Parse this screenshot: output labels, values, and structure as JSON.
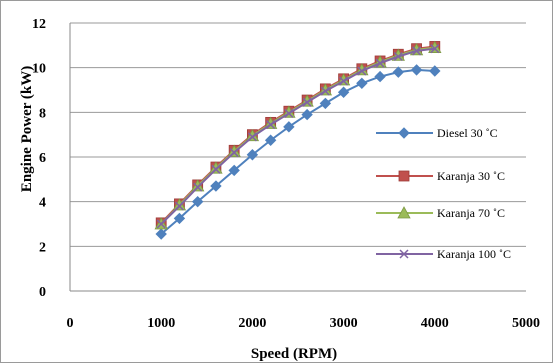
{
  "chart_data": {
    "type": "line",
    "title": "",
    "xlabel": "Speed (RPM)",
    "ylabel": "Engine Power (kW)",
    "xlim": [
      0,
      5000
    ],
    "ylim": [
      0,
      12
    ],
    "xticks": [
      0,
      1000,
      2000,
      3000,
      4000,
      5000
    ],
    "yticks": [
      0,
      2,
      4,
      6,
      8,
      10,
      12
    ],
    "grid": "horizontal",
    "legend_position": "right",
    "x": [
      1000,
      1200,
      1400,
      1600,
      1800,
      2000,
      2200,
      2400,
      2600,
      2800,
      3000,
      3200,
      3400,
      3600,
      3800,
      4000
    ],
    "series": [
      {
        "name": "Diesel 30 ˚C",
        "color": "#4f81bd",
        "marker": "diamond",
        "values": [
          2.55,
          3.25,
          4.0,
          4.7,
          5.4,
          6.1,
          6.75,
          7.35,
          7.9,
          8.4,
          8.9,
          9.3,
          9.6,
          9.8,
          9.9,
          9.85
        ]
      },
      {
        "name": "Karanja 30 ˚C",
        "color": "#c0504d",
        "marker": "square",
        "values": [
          3.05,
          3.9,
          4.75,
          5.55,
          6.3,
          7.0,
          7.55,
          8.05,
          8.55,
          9.05,
          9.5,
          9.95,
          10.3,
          10.6,
          10.85,
          10.95
        ]
      },
      {
        "name": "Karanja 70 ˚C",
        "color": "#9bbb59",
        "marker": "triangle",
        "values": [
          3.0,
          3.85,
          4.7,
          5.5,
          6.25,
          6.95,
          7.5,
          8.0,
          8.5,
          9.0,
          9.45,
          9.9,
          10.25,
          10.55,
          10.8,
          10.9
        ]
      },
      {
        "name": "Karanja 100 ˚C",
        "color": "#8064a2",
        "marker": "x",
        "values": [
          3.0,
          3.8,
          4.65,
          5.45,
          6.2,
          6.9,
          7.45,
          7.95,
          8.45,
          8.95,
          9.4,
          9.85,
          10.2,
          10.5,
          10.75,
          10.85
        ]
      }
    ]
  }
}
